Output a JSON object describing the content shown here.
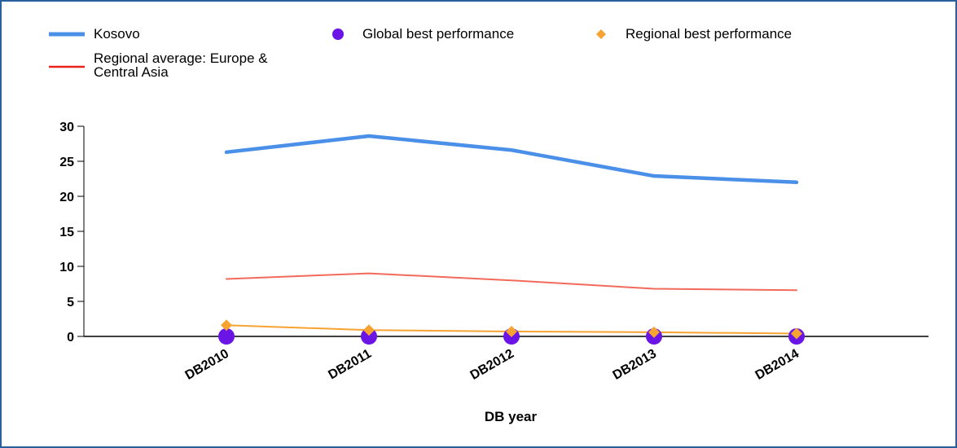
{
  "chart_data": {
    "type": "line",
    "x_label": "DB year",
    "categories": [
      "DB2010",
      "DB2011",
      "DB2012",
      "DB2013",
      "DB2014"
    ],
    "series": [
      {
        "name": "Kosovo",
        "color": "#4a8fe8",
        "style": "line",
        "values": [
          26.3,
          28.6,
          26.6,
          22.9,
          22.0
        ]
      },
      {
        "name": "Regional average: Europe & Central Asia",
        "color": "#f26a5c",
        "style": "line",
        "values": [
          8.2,
          9.0,
          8.0,
          6.8,
          6.6
        ]
      },
      {
        "name": "Global best performance",
        "color": "#6a14e6",
        "style": "markers",
        "values": [
          0,
          0,
          0,
          0,
          0
        ]
      },
      {
        "name": "Regional best performance",
        "color": "#f7a332",
        "style": "line+markers",
        "values": [
          1.6,
          0.9,
          0.7,
          0.6,
          0.4
        ]
      }
    ],
    "ylim": [
      0,
      30
    ],
    "yticks": [
      0,
      5,
      10,
      15,
      20,
      25,
      30
    ]
  }
}
